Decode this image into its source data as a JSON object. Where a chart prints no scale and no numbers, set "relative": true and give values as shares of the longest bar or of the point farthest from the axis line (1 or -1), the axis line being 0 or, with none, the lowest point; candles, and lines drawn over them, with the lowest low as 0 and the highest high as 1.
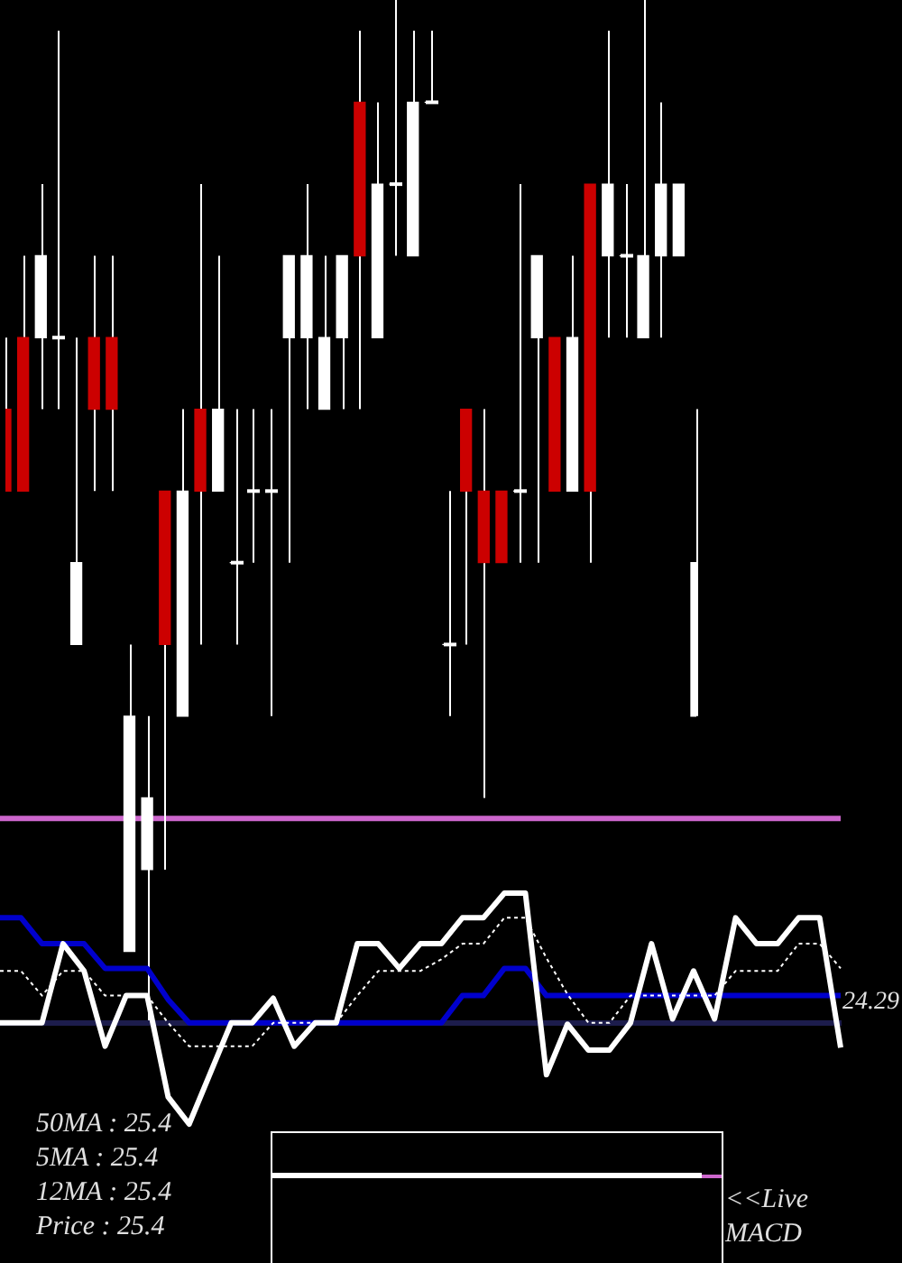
{
  "chart_data": [
    {
      "type": "candlestick",
      "categories": [
        null,
        null,
        null,
        null,
        null,
        null,
        null,
        null,
        null,
        null,
        null,
        null,
        null,
        null,
        null,
        null,
        null,
        null,
        null,
        null,
        null,
        null,
        null,
        null,
        null,
        null,
        null,
        null,
        null,
        null,
        null,
        null,
        null,
        null,
        null,
        null,
        null,
        null,
        null,
        null
      ],
      "relative": true,
      "ohlc": [
        [
          0.6,
          0.67,
          0.52,
          0.52
        ],
        [
          0.67,
          0.75,
          0.52,
          0.52
        ],
        [
          0.67,
          0.82,
          0.6,
          0.75
        ],
        [
          0.67,
          0.97,
          0.6,
          0.67
        ],
        [
          0.37,
          0.67,
          0.37,
          0.45
        ],
        [
          0.67,
          0.75,
          0.52,
          0.6
        ],
        [
          0.67,
          0.75,
          0.52,
          0.6
        ],
        [
          0.07,
          0.37,
          0.07,
          0.3
        ],
        [
          0.15,
          0.3,
          0,
          0.22
        ],
        [
          0.52,
          0.52,
          0.15,
          0.37
        ],
        [
          0.3,
          0.6,
          0.3,
          0.52
        ],
        [
          0.6,
          0.82,
          0.37,
          0.52
        ],
        [
          0.52,
          0.75,
          0.52,
          0.6
        ],
        [
          0.45,
          0.6,
          0.37,
          0.45
        ],
        [
          0.52,
          0.6,
          0.45,
          0.52
        ],
        [
          0.52,
          0.6,
          0.3,
          0.52
        ],
        [
          0.67,
          0.75,
          0.45,
          0.75
        ],
        [
          0.67,
          0.82,
          0.6,
          0.75
        ],
        [
          0.6,
          0.75,
          0.6,
          0.67
        ],
        [
          0.67,
          0.75,
          0.6,
          0.75
        ],
        [
          0.9,
          0.97,
          0.6,
          0.75
        ],
        [
          0.67,
          0.9,
          0.67,
          0.82
        ],
        [
          0.82,
          1,
          0.75,
          0.82
        ],
        [
          0.75,
          0.97,
          0.75,
          0.9
        ],
        [
          0.9,
          0.97,
          0.9,
          0.9
        ],
        [
          0.37,
          0.52,
          0.3,
          0.37
        ],
        [
          0.6,
          0.6,
          0.37,
          0.52
        ],
        [
          0.52,
          0.6,
          0.22,
          0.45
        ],
        [
          0.52,
          0.52,
          0.45,
          0.45
        ],
        [
          0.52,
          0.82,
          0.45,
          0.52
        ],
        [
          0.67,
          0.75,
          0.45,
          0.75
        ],
        [
          0.67,
          0.67,
          0.52,
          0.52
        ],
        [
          0.52,
          0.75,
          0.52,
          0.67
        ],
        [
          0.82,
          0.82,
          0.45,
          0.52
        ],
        [
          0.75,
          0.97,
          0.67,
          0.82
        ],
        [
          0.75,
          0.82,
          0.67,
          0.75
        ],
        [
          0.67,
          1,
          0.67,
          0.75
        ],
        [
          0.75,
          0.9,
          0.67,
          0.82
        ],
        [
          0.75,
          0.82,
          0.75,
          0.82
        ],
        [
          0.3,
          0.6,
          0.3,
          0.45
        ]
      ],
      "colors": [
        "#cc0000",
        "#cc0000",
        "#ffffff",
        "#ffffff",
        "#ffffff",
        "#cc0000",
        "#cc0000",
        "#ffffff",
        "#ffffff",
        "#cc0000",
        "#ffffff",
        "#cc0000",
        "#ffffff",
        "#ffffff",
        "#ffffff",
        "#ffffff",
        "#ffffff",
        "#ffffff",
        "#ffffff",
        "#ffffff",
        "#cc0000",
        "#ffffff",
        "#ffffff",
        "#ffffff",
        "#ffffff",
        "#ffffff",
        "#cc0000",
        "#cc0000",
        "#cc0000",
        "#ffffff",
        "#ffffff",
        "#cc0000",
        "#ffffff",
        "#cc0000",
        "#ffffff",
        "#ffffff",
        "#ffffff",
        "#ffffff",
        "#ffffff",
        "#ffffff"
      ],
      "ref_lines": [
        {
          "axis": "y",
          "value": 0.2,
          "color": "#cc66cc"
        }
      ]
    },
    {
      "type": "line",
      "categories": [
        null,
        null,
        null,
        null,
        null,
        null,
        null,
        null,
        null,
        null,
        null,
        null,
        null,
        null,
        null,
        null,
        null,
        null,
        null,
        null,
        null,
        null,
        null,
        null,
        null,
        null,
        null,
        null,
        null,
        null,
        null,
        null,
        null,
        null,
        null,
        null,
        null,
        null,
        null,
        null,
        null
      ],
      "relative": true,
      "marker": "none",
      "series": [
        {
          "color": "#ffffff",
          "values": [
            0,
            0,
            0,
            0.61,
            0.4,
            -0.18,
            0.21,
            0.21,
            -0.57,
            -0.78,
            -0.39,
            0,
            0,
            0.19,
            -0.18,
            0,
            0,
            0.61,
            0.61,
            0.42,
            0.61,
            0.61,
            0.81,
            0.81,
            1,
            1,
            -0.4,
            -0.01,
            -0.21,
            -0.21,
            0,
            0.61,
            0.03,
            0.4,
            0.03,
            0.81,
            0.61,
            0.61,
            0.81,
            0.81,
            -0.19
          ]
        },
        {
          "color": "#ffffff",
          "line_style": "dotted",
          "values": [
            0.4,
            0.4,
            0.21,
            0.4,
            0.4,
            0.21,
            0.21,
            0.21,
            0,
            -0.18,
            -0.18,
            -0.18,
            -0.18,
            0,
            0,
            0,
            0,
            0.21,
            0.4,
            0.4,
            0.4,
            0.49,
            0.61,
            0.61,
            0.81,
            0.81,
            0.5,
            0.22,
            0,
            0,
            0.21,
            0.21,
            0.21,
            0.21,
            0.21,
            0.4,
            0.4,
            0.4,
            0.61,
            0.61,
            0.42
          ]
        },
        {
          "color": "#0000cc",
          "values": [
            0.81,
            0.81,
            0.61,
            0.61,
            0.61,
            0.42,
            0.42,
            0.42,
            0.18,
            0,
            0,
            0,
            0,
            0,
            0,
            0,
            0,
            0,
            0,
            0,
            0,
            0,
            0.21,
            0.21,
            0.42,
            0.42,
            0.21,
            0.21,
            0.21,
            0.21,
            0.21,
            0.21,
            0.21,
            0.21,
            0.21,
            0.21,
            0.21,
            0.21,
            0.21,
            0.21,
            0.21
          ]
        }
      ],
      "annotations": [
        "24.29",
        "50MA : 25.4",
        "5MA : 25.4",
        "12MA : 25.4",
        "Price : 25.4",
        "<<Live MACD"
      ]
    }
  ]
}
